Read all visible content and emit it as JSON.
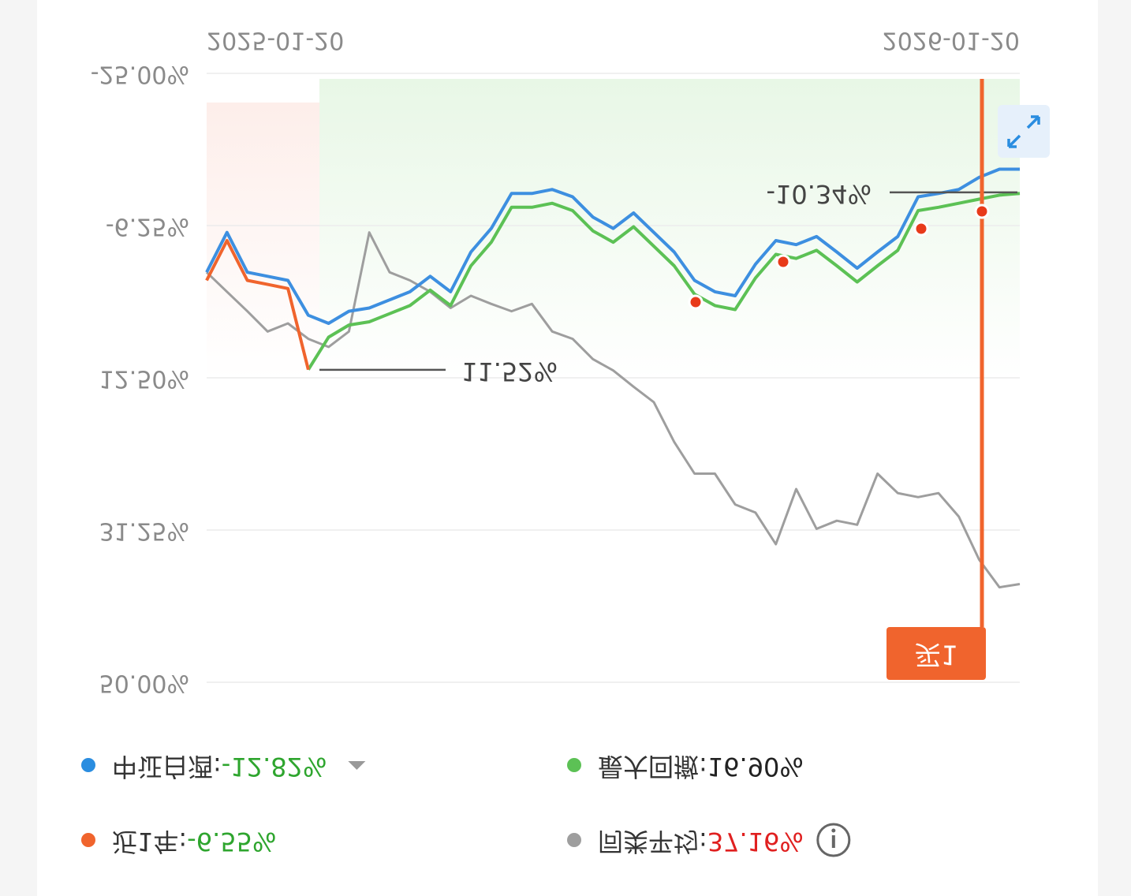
{
  "chart_data": {
    "type": "line",
    "ylim": [
      50,
      -25
    ],
    "yticks": [
      {
        "value": 50,
        "label": "50.00%"
      },
      {
        "value": 31.25,
        "label": "31.25%"
      },
      {
        "value": 12.5,
        "label": "12.50%"
      },
      {
        "value": -6.25,
        "label": "-6.25%"
      },
      {
        "value": -25,
        "label": "-25.00%"
      }
    ],
    "x_labels": [
      "2025-01-20",
      "2026-01-20"
    ],
    "series": [
      {
        "color": "#9e9e9e",
        "values": [
          -0.5,
          1.9,
          4.3,
          6.8,
          5.8,
          7.7,
          8.7,
          6.8,
          -5.4,
          -0.5,
          0.5,
          1.9,
          3.9,
          2.4,
          3.4,
          4.3,
          3.4,
          6.8,
          7.7,
          10.2,
          11.6,
          13.6,
          15.5,
          20.4,
          24.3,
          24.3,
          28.1,
          29.1,
          33.0,
          26.2,
          31.1,
          30.1,
          30.6,
          24.3,
          26.7,
          27.2,
          26.7,
          29.6,
          34.9,
          38.3,
          37.9
        ]
      },
      {
        "color": "#3d8fe0",
        "values": [
          -0.5,
          -5.4,
          -0.5,
          0.0,
          0.5,
          4.8,
          5.8,
          4.3,
          3.9,
          2.9,
          1.9,
          0.0,
          1.9,
          -3.0,
          -5.9,
          -10.2,
          -10.2,
          -10.7,
          -9.8,
          -7.3,
          -5.9,
          -7.8,
          -5.4,
          -3.0,
          0.5,
          1.9,
          2.4,
          -1.5,
          -4.4,
          -3.9,
          -4.9,
          -3.0,
          -1.0,
          -3.0,
          -4.9,
          -9.8,
          -10.2,
          -10.7,
          -12.2,
          -13.2,
          -13.2
        ]
      },
      {
        "color": "#5cc155",
        "values": [
          null,
          null,
          null,
          null,
          null,
          11.5,
          7.5,
          6.0,
          5.6,
          4.6,
          3.6,
          1.7,
          3.6,
          -1.3,
          -4.2,
          -8.5,
          -8.5,
          -9.0,
          -8.1,
          -5.6,
          -4.2,
          -6.1,
          -3.7,
          -1.3,
          2.2,
          3.6,
          4.1,
          0.2,
          -2.7,
          -2.2,
          -3.2,
          -1.3,
          0.7,
          -1.3,
          -3.2,
          -8.1,
          -8.5,
          -9.0,
          -9.5,
          -10.0,
          -10.2
        ]
      },
      {
        "color": "#f0642d",
        "values": [
          0.5,
          -4.4,
          0.5,
          1.0,
          1.5,
          11.5,
          null,
          null,
          null,
          null,
          null,
          null,
          null,
          null,
          null,
          null,
          null,
          null,
          null,
          null,
          null,
          null,
          null,
          null,
          null,
          null,
          null,
          null,
          null,
          null,
          null,
          null,
          null,
          null,
          null,
          null,
          null,
          null,
          null,
          null,
          -10.2
        ]
      }
    ],
    "annotations": [
      {
        "value": 11.52,
        "label": "11.52%"
      },
      {
        "value": -10.34,
        "label": "-10.34%"
      }
    ],
    "marker_label": "买1",
    "legend": [
      {
        "label": "近1年:",
        "value": "-6.55%",
        "color": "#f0642d",
        "value_color": "#2ea52e"
      },
      {
        "label": "同类平均:",
        "value": "37.16%",
        "color": "#9e9e9e",
        "value_color": "#e02020"
      },
      {
        "label": "中证白酒:",
        "value": "-12.82%",
        "color": "#2a8de0",
        "value_color": "#2ea52e"
      },
      {
        "label": "最大回撤:",
        "value": "16.90%",
        "color": "#5cc155",
        "value_color": "#222222"
      }
    ]
  }
}
